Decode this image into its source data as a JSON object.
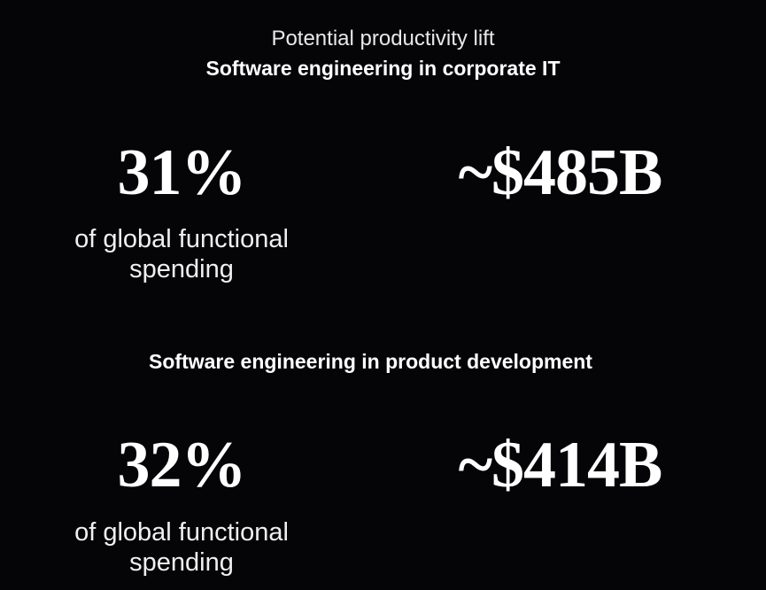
{
  "header": {
    "subtitle": "Potential productivity lift",
    "title": "Software engineering in corporate IT"
  },
  "sections": [
    {
      "heading": "Software engineering in corporate IT",
      "percent": "31%",
      "percent_caption_line1": "of global functional",
      "percent_caption_line2": "spending",
      "amount": "~$485B"
    },
    {
      "heading": "Software engineering in product development",
      "percent": "32%",
      "percent_caption_line1": "of global functional",
      "percent_caption_line2": "spending",
      "amount": "~$414B"
    }
  ],
  "colors": {
    "background": "#050508",
    "text": "#ffffff"
  }
}
